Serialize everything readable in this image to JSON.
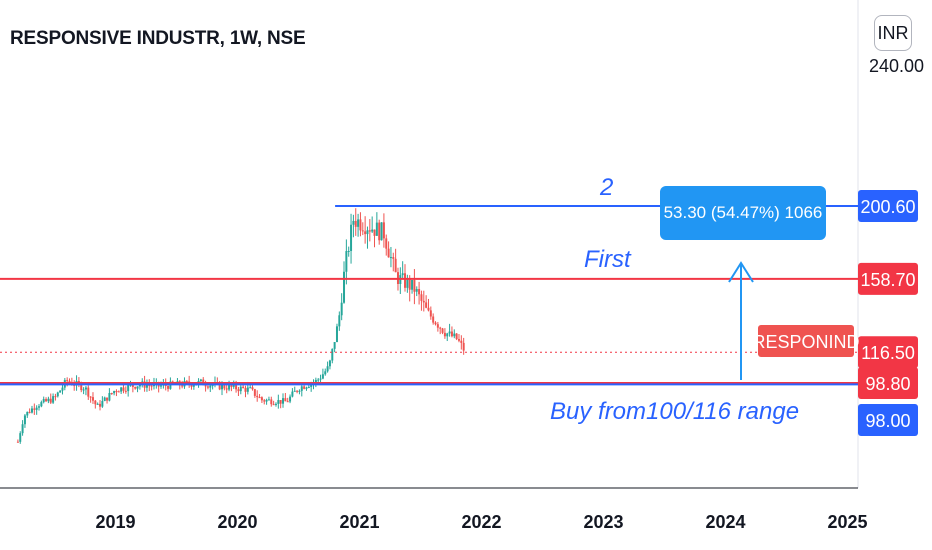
{
  "header": {
    "title": "RESPONSIVE INDUSTR, 1W, NSE"
  },
  "currency_button": {
    "label": "INR"
  },
  "price_axis": {
    "top_label": "240.00",
    "tags": [
      {
        "text": "200.60",
        "price": 200.6,
        "color": "#2962ff"
      },
      {
        "text": "158.70",
        "price": 158.7,
        "color": "#f23645"
      },
      {
        "text": "116.50",
        "price": 116.5,
        "color": "#f23645"
      },
      {
        "text": "98.80",
        "price": 98.8,
        "color": "#f23645"
      },
      {
        "text": "98.00",
        "price": 98.0,
        "color": "#2962ff"
      }
    ],
    "symbol_tag": "RESPONIND"
  },
  "annotations": {
    "wave_label": "2",
    "first_label": "First",
    "buy_label": "Buy from100/116 range",
    "measure_label": "53.30 (54.47%) 1066"
  },
  "colors": {
    "up": "#26a69a",
    "down": "#ef5350",
    "accent_blue": "#2962ff",
    "accent_red": "#f23645",
    "measure_blue": "#2196f3"
  },
  "chart_data": {
    "type": "candlestick",
    "title": "RESPONSIVE INDUSTR, 1W, NSE",
    "timeframe": "1W",
    "exchange": "NSE",
    "x_ticks": [
      "2019",
      "2020",
      "2021",
      "2022",
      "2023",
      "2024",
      "2025"
    ],
    "y_range": [
      60,
      240
    ],
    "last_price": 116.5,
    "horizontal_levels": [
      {
        "price": 200.6,
        "color": "#2962ff",
        "from_date": "2020.80"
      },
      {
        "price": 158.7,
        "color": "#f23645"
      },
      {
        "price": 98.8,
        "color": "#f23645"
      },
      {
        "price": 98.0,
        "color": "#2962ff"
      }
    ],
    "price_path": [
      {
        "date": "2018.2",
        "price": 65
      },
      {
        "date": "2018.25",
        "price": 80
      },
      {
        "date": "2018.35",
        "price": 86
      },
      {
        "date": "2018.5",
        "price": 90
      },
      {
        "date": "2018.6",
        "price": 100
      },
      {
        "date": "2018.75",
        "price": 96
      },
      {
        "date": "2018.85",
        "price": 85
      },
      {
        "date": "2019.0",
        "price": 95
      },
      {
        "date": "2019.2",
        "price": 98
      },
      {
        "date": "2019.35",
        "price": 97
      },
      {
        "date": "2019.55",
        "price": 98
      },
      {
        "date": "2019.7",
        "price": 99
      },
      {
        "date": "2019.85",
        "price": 97
      },
      {
        "date": "2020.1",
        "price": 95
      },
      {
        "date": "2020.2",
        "price": 89
      },
      {
        "date": "2020.4",
        "price": 88
      },
      {
        "date": "2020.5",
        "price": 96
      },
      {
        "date": "2020.65",
        "price": 100
      },
      {
        "date": "2020.75",
        "price": 108
      },
      {
        "date": "2020.83",
        "price": 135
      },
      {
        "date": "2020.88",
        "price": 165
      },
      {
        "date": "2020.95",
        "price": 193
      },
      {
        "date": "2021.05",
        "price": 190
      },
      {
        "date": "2021.2",
        "price": 185
      },
      {
        "date": "2021.3",
        "price": 160
      },
      {
        "date": "2021.45",
        "price": 153
      },
      {
        "date": "2021.55",
        "price": 140
      },
      {
        "date": "2021.7",
        "price": 128
      },
      {
        "date": "2021.8",
        "price": 124
      },
      {
        "date": "2021.87",
        "price": 116.5
      }
    ]
  }
}
